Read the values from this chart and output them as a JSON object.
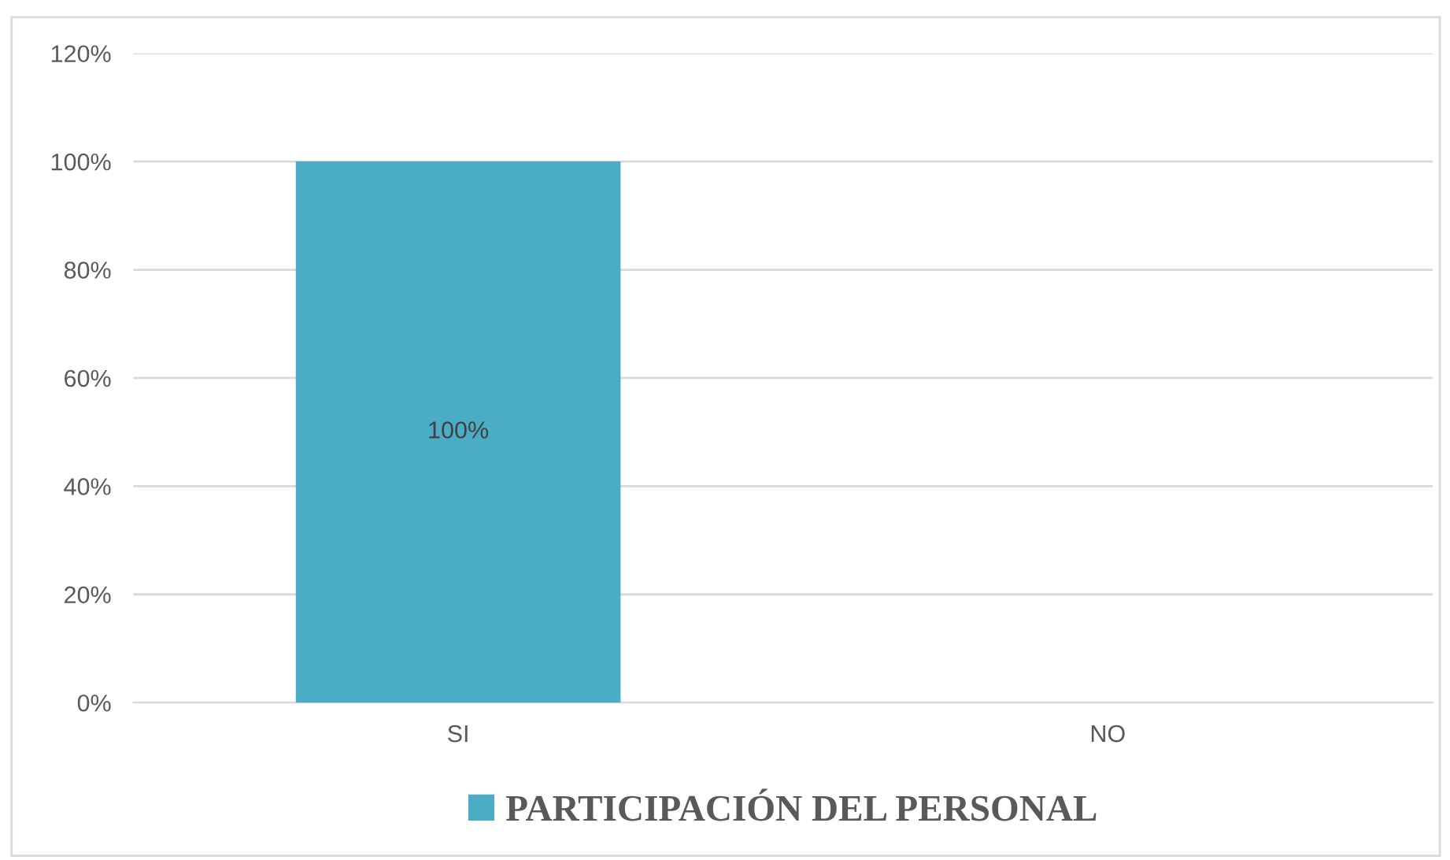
{
  "chart_data": {
    "type": "bar",
    "categories": [
      "SI",
      "NO"
    ],
    "series": [
      {
        "name": "PARTICIPACIÓN DEL PERSONAL",
        "color": "#4bacc6",
        "values": [
          100,
          0
        ],
        "value_labels": [
          "100%",
          null
        ]
      }
    ],
    "ylim": [
      0,
      120
    ],
    "yticks": [
      {
        "value": 0,
        "label": "0%"
      },
      {
        "value": 20,
        "label": "20%"
      },
      {
        "value": 40,
        "label": "40%"
      },
      {
        "value": 60,
        "label": "60%"
      },
      {
        "value": 80,
        "label": "80%"
      },
      {
        "value": 100,
        "label": "100%"
      },
      {
        "value": 120,
        "label": "120%"
      }
    ],
    "grid": "y",
    "legend": "bottom"
  }
}
